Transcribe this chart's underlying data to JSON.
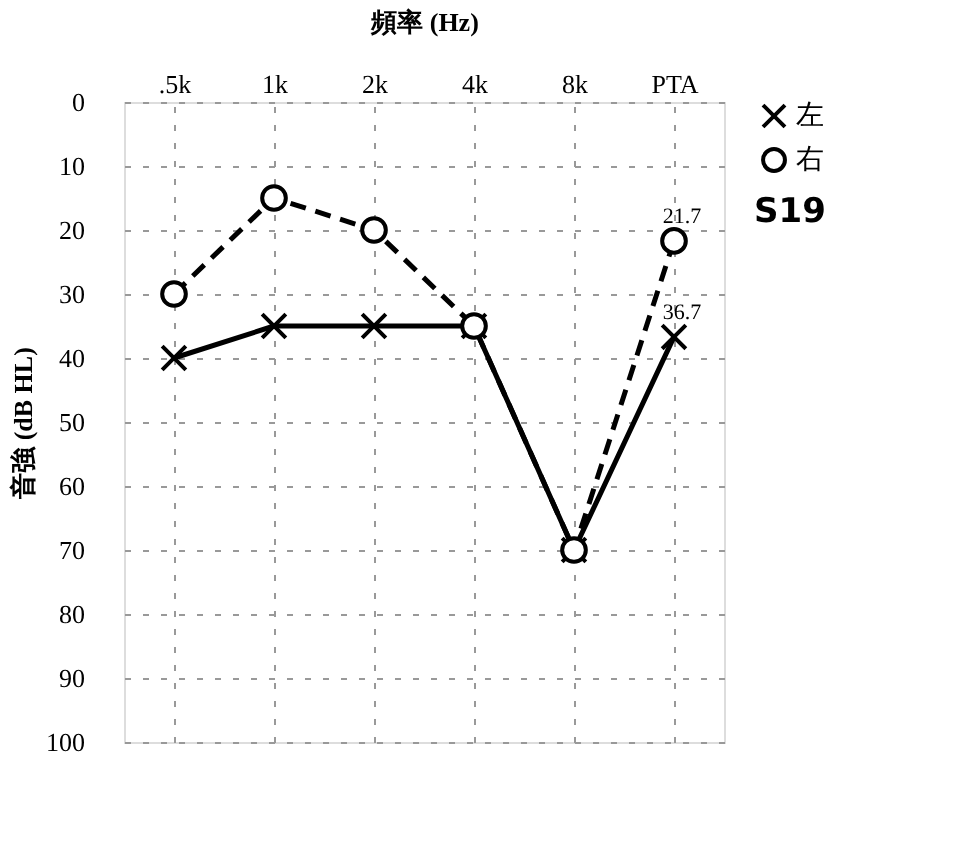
{
  "chart_data": {
    "type": "line",
    "xlabel": "頻率 (Hz)",
    "ylabel": "音強 (dB HL)",
    "categories": [
      ".5k",
      "1k",
      "2k",
      "4k",
      "8k",
      "PTA"
    ],
    "series": [
      {
        "name": "左",
        "color": "#000000",
        "marker": "cross",
        "line_style": "solid",
        "values": [
          40,
          35,
          35,
          35,
          70,
          36.7
        ],
        "value_labels": [
          null,
          null,
          null,
          null,
          null,
          "36.7"
        ]
      },
      {
        "name": "右",
        "color": "#000000",
        "marker": "circle",
        "line_style": "dashed",
        "values": [
          30,
          15,
          20,
          35,
          70,
          21.7
        ],
        "value_labels": [
          null,
          null,
          null,
          null,
          null,
          "21.7"
        ]
      }
    ],
    "ylim": [
      100,
      0
    ],
    "yticks": [
      0,
      10,
      20,
      30,
      40,
      50,
      60,
      70,
      80,
      90,
      100
    ],
    "grid": true,
    "legend": "right",
    "annotations": [
      "S19"
    ]
  }
}
